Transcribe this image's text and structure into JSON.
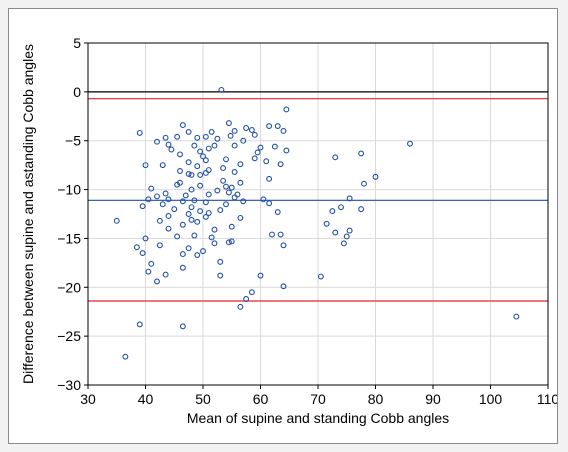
{
  "chart_data": {
    "type": "scatter",
    "title": "",
    "xlabel": "Mean of supine and standing Cobb angles",
    "ylabel": "Difference between supine and astanding Cobb angles",
    "xlim": [
      30,
      110
    ],
    "ylim": [
      -30,
      5
    ],
    "xticks": [
      30,
      40,
      50,
      60,
      70,
      80,
      90,
      100,
      110
    ],
    "yticks": [
      5,
      0,
      -5,
      -10,
      -15,
      -20,
      -25,
      -30
    ],
    "grid": true,
    "reference_lines": [
      {
        "label": "zero",
        "y": 0,
        "color": "#000000"
      },
      {
        "label": "upper limit of agreement",
        "y": -0.7,
        "color": "#e8222a"
      },
      {
        "label": "mean difference",
        "y": -11.1,
        "color": "#1f4fa8"
      },
      {
        "label": "lower limit of agreement",
        "y": -21.4,
        "color": "#e8222a"
      }
    ],
    "marker_color": "#1f4fa8",
    "points": [
      [
        53.2,
        0.2
      ],
      [
        64.5,
        -1.8
      ],
      [
        63.0,
        -3.5
      ],
      [
        61.5,
        -3.5
      ],
      [
        54.5,
        -3.2
      ],
      [
        46.5,
        -3.4
      ],
      [
        57.5,
        -3.7
      ],
      [
        58.5,
        -3.9
      ],
      [
        55.5,
        -4.0
      ],
      [
        64.0,
        -4.0
      ],
      [
        47.5,
        -4.1
      ],
      [
        51.5,
        -4.1
      ],
      [
        39.0,
        -4.2
      ],
      [
        59.0,
        -4.4
      ],
      [
        54.8,
        -4.5
      ],
      [
        50.5,
        -4.6
      ],
      [
        45.5,
        -4.6
      ],
      [
        43.5,
        -4.7
      ],
      [
        49.0,
        -4.7
      ],
      [
        52.5,
        -4.8
      ],
      [
        57.0,
        -5.0
      ],
      [
        42.0,
        -5.1
      ],
      [
        44.0,
        -5.4
      ],
      [
        52.0,
        -5.5
      ],
      [
        55.5,
        -5.5
      ],
      [
        86.0,
        -5.3
      ],
      [
        62.5,
        -5.6
      ],
      [
        60.0,
        -5.7
      ],
      [
        51.0,
        -5.8
      ],
      [
        48.5,
        -5.5
      ],
      [
        44.5,
        -5.9
      ],
      [
        64.5,
        -6.0
      ],
      [
        49.5,
        -6.1
      ],
      [
        59.5,
        -6.2
      ],
      [
        77.5,
        -6.3
      ],
      [
        46.0,
        -6.4
      ],
      [
        50.0,
        -6.6
      ],
      [
        73.0,
        -6.7
      ],
      [
        59.0,
        -6.8
      ],
      [
        54.0,
        -6.9
      ],
      [
        50.5,
        -7.0
      ],
      [
        61.0,
        -7.1
      ],
      [
        47.5,
        -7.2
      ],
      [
        63.5,
        -7.4
      ],
      [
        43.0,
        -7.5
      ],
      [
        40.0,
        -7.5
      ],
      [
        56.5,
        -7.4
      ],
      [
        49.0,
        -7.6
      ],
      [
        53.5,
        -7.8
      ],
      [
        51.0,
        -8.0
      ],
      [
        46.0,
        -8.1
      ],
      [
        55.5,
        -8.2
      ],
      [
        50.5,
        -8.3
      ],
      [
        47.5,
        -8.4
      ],
      [
        49.5,
        -8.5
      ],
      [
        48.0,
        -8.5
      ],
      [
        80.0,
        -8.7
      ],
      [
        61.5,
        -8.9
      ],
      [
        53.5,
        -9.1
      ],
      [
        56.5,
        -9.3
      ],
      [
        46.0,
        -9.3
      ],
      [
        78.0,
        -9.4
      ],
      [
        45.5,
        -9.5
      ],
      [
        49.5,
        -9.6
      ],
      [
        54.0,
        -9.7
      ],
      [
        55.0,
        -9.8
      ],
      [
        41.0,
        -9.9
      ],
      [
        48.0,
        -10.0
      ],
      [
        52.5,
        -10.1
      ],
      [
        54.5,
        -10.3
      ],
      [
        43.5,
        -10.4
      ],
      [
        51.0,
        -10.5
      ],
      [
        56.0,
        -10.5
      ],
      [
        47.0,
        -10.6
      ],
      [
        42.0,
        -10.7
      ],
      [
        55.5,
        -10.8
      ],
      [
        75.5,
        -10.9
      ],
      [
        60.5,
        -11.0
      ],
      [
        40.5,
        -11.0
      ],
      [
        44.0,
        -11.0
      ],
      [
        48.5,
        -11.1
      ],
      [
        46.5,
        -11.2
      ],
      [
        57.0,
        -11.2
      ],
      [
        50.5,
        -11.3
      ],
      [
        61.5,
        -11.4
      ],
      [
        43.0,
        -11.5
      ],
      [
        54.0,
        -11.5
      ],
      [
        39.5,
        -11.7
      ],
      [
        48.0,
        -11.8
      ],
      [
        74.0,
        -11.8
      ],
      [
        77.5,
        -12.0
      ],
      [
        45.0,
        -12.0
      ],
      [
        53.0,
        -12.1
      ],
      [
        72.5,
        -12.2
      ],
      [
        49.5,
        -12.2
      ],
      [
        63.0,
        -12.3
      ],
      [
        51.0,
        -12.4
      ],
      [
        47.5,
        -12.5
      ],
      [
        44.0,
        -12.7
      ],
      [
        50.5,
        -12.8
      ],
      [
        56.5,
        -12.9
      ],
      [
        48.0,
        -13.1
      ],
      [
        42.5,
        -13.2
      ],
      [
        35.0,
        -13.2
      ],
      [
        49.0,
        -13.3
      ],
      [
        71.5,
        -13.5
      ],
      [
        46.5,
        -13.6
      ],
      [
        55.0,
        -13.8
      ],
      [
        44.0,
        -14.0
      ],
      [
        52.0,
        -14.1
      ],
      [
        75.5,
        -14.2
      ],
      [
        73.0,
        -14.4
      ],
      [
        62.0,
        -14.6
      ],
      [
        63.5,
        -14.6
      ],
      [
        48.5,
        -14.7
      ],
      [
        51.5,
        -14.9
      ],
      [
        75.0,
        -14.8
      ],
      [
        45.5,
        -14.8
      ],
      [
        40.0,
        -15.0
      ],
      [
        55.0,
        -15.3
      ],
      [
        54.5,
        -15.4
      ],
      [
        52.0,
        -15.5
      ],
      [
        74.5,
        -15.5
      ],
      [
        64.0,
        -15.7
      ],
      [
        42.5,
        -15.7
      ],
      [
        38.5,
        -15.9
      ],
      [
        47.5,
        -16.0
      ],
      [
        50.0,
        -16.3
      ],
      [
        39.5,
        -16.5
      ],
      [
        46.5,
        -16.6
      ],
      [
        49.0,
        -16.7
      ],
      [
        53.0,
        -17.4
      ],
      [
        41.0,
        -17.6
      ],
      [
        46.5,
        -18.0
      ],
      [
        40.5,
        -18.4
      ],
      [
        43.5,
        -18.7
      ],
      [
        53.0,
        -18.8
      ],
      [
        60.0,
        -18.8
      ],
      [
        70.5,
        -18.9
      ],
      [
        42.0,
        -19.4
      ],
      [
        64.0,
        -19.9
      ],
      [
        58.5,
        -20.5
      ],
      [
        57.5,
        -21.2
      ],
      [
        56.5,
        -22.0
      ],
      [
        104.5,
        -23.0
      ],
      [
        39.0,
        -23.8
      ],
      [
        46.5,
        -24.0
      ],
      [
        36.5,
        -27.1
      ]
    ]
  }
}
